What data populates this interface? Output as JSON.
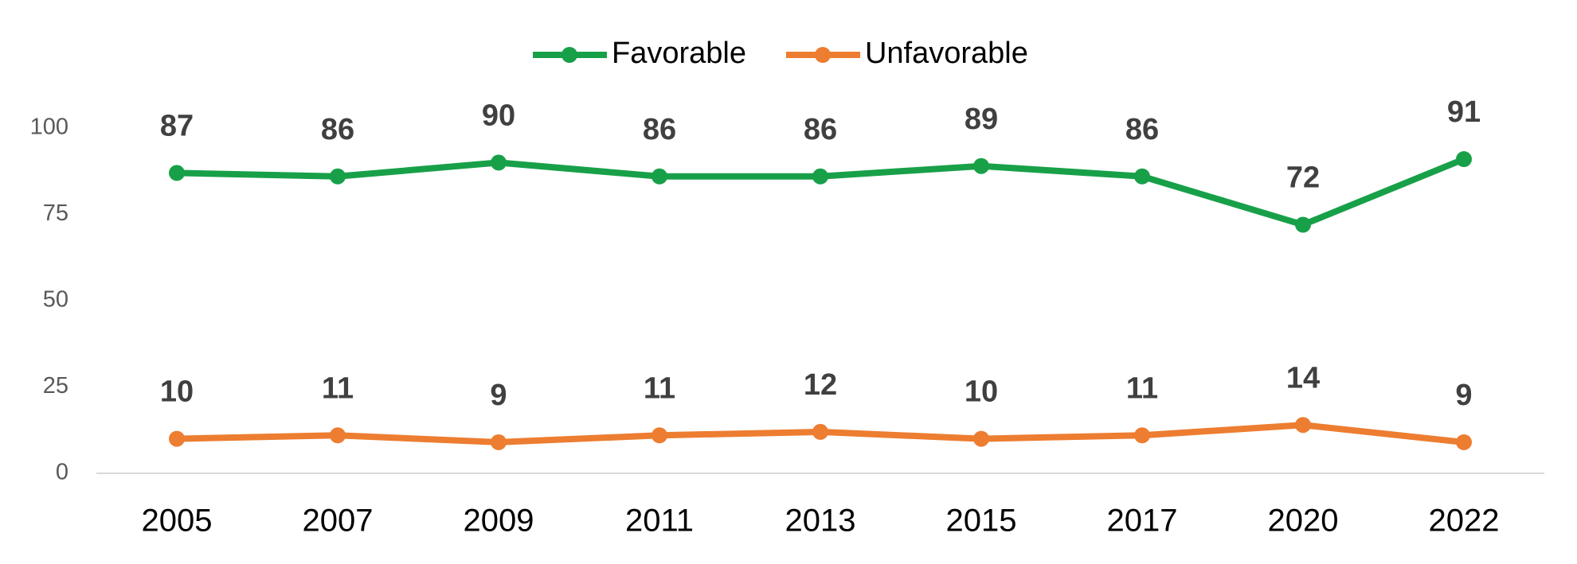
{
  "chart_data": {
    "type": "line",
    "categories": [
      "2005",
      "2007",
      "2009",
      "2011",
      "2013",
      "2015",
      "2017",
      "2020",
      "2022"
    ],
    "series": [
      {
        "name": "Favorable",
        "color": "#18a049",
        "values": [
          87,
          86,
          90,
          86,
          86,
          89,
          86,
          72,
          91
        ]
      },
      {
        "name": "Unfavorable",
        "color": "#ed7d31",
        "values": [
          10,
          11,
          9,
          11,
          12,
          10,
          11,
          14,
          9
        ]
      }
    ],
    "ylim": [
      0,
      100
    ],
    "yticks": [
      0,
      25,
      50,
      75,
      100
    ],
    "grid": false,
    "legend": "top",
    "data_labels": true
  }
}
